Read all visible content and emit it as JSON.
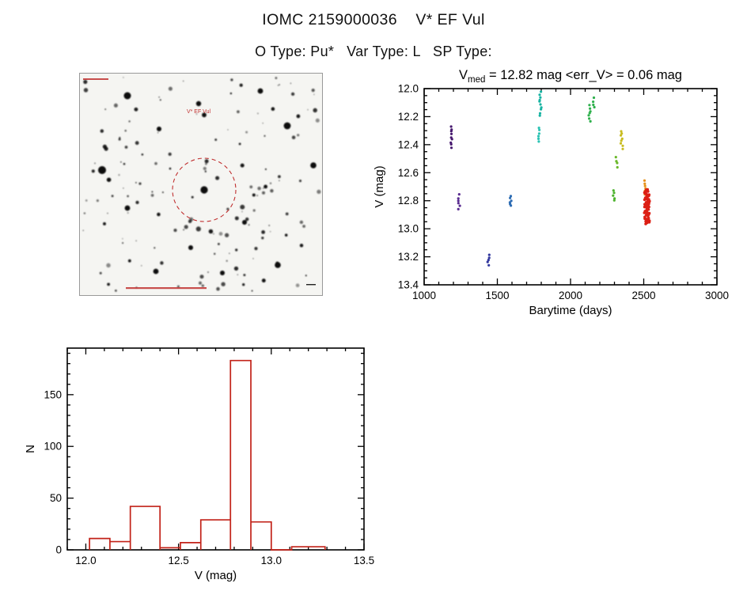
{
  "header": {
    "title": "IOMC 2159000036    V* EF Vul",
    "subtitle": "O Type: Pu*   Var Type: L   SP Type:"
  },
  "finding_chart": {
    "target_label": "V* EF Vul",
    "annotation_color": "#c03030",
    "target_star": [
      157,
      147,
      4.6
    ],
    "stars_big": [
      [
        60,
        28,
        4.5
      ],
      [
        150,
        38,
        3.2
      ],
      [
        28,
        122,
        5.0
      ],
      [
        100,
        70,
        3.0
      ],
      [
        228,
        22,
        3.4
      ],
      [
        262,
        66,
        4.4
      ],
      [
        295,
        116,
        3.8
      ],
      [
        60,
        170,
        3.4
      ],
      [
        140,
        220,
        3.0
      ],
      [
        208,
        188,
        3.0
      ],
      [
        250,
        242,
        3.8
      ],
      [
        96,
        250,
        3.4
      ],
      [
        180,
        252,
        3.0
      ],
      [
        310,
        10,
        2.8
      ]
    ]
  },
  "chart_data": [
    {
      "type": "scatter",
      "name": "lightcurve",
      "title": {
        "v": "V",
        "sub": "med",
        "rest": " = 12.82 mag <err_V> = 0.06 mag"
      },
      "xlabel": "Barytime (days)",
      "ylabel": "V (mag)",
      "xlim": [
        1000,
        3000
      ],
      "ylim": [
        12.0,
        13.4
      ],
      "y_inverted": true,
      "xticks": [
        1000,
        1500,
        2000,
        2500,
        3000
      ],
      "yticks": [
        12.0,
        12.2,
        12.4,
        12.6,
        12.8,
        13.0,
        13.2,
        13.4
      ],
      "x_minor_step": 100,
      "y_minor_step": 0.05,
      "legend": "none",
      "grid": false,
      "clusters": [
        {
          "x": 1185,
          "y0": 12.27,
          "y1": 12.42,
          "color": "#46186e",
          "n": 9
        },
        {
          "x": 1240,
          "y0": 12.76,
          "y1": 12.86,
          "color": "#5a2d91",
          "n": 6
        },
        {
          "x": 1440,
          "y0": 13.19,
          "y1": 13.26,
          "color": "#31379e",
          "n": 5
        },
        {
          "x": 1590,
          "y0": 12.77,
          "y1": 12.84,
          "color": "#2e6db4",
          "n": 6
        },
        {
          "x": 1795,
          "y0": 12.02,
          "y1": 12.19,
          "color": "#17b3a2",
          "n": 10
        },
        {
          "x": 1780,
          "y0": 12.28,
          "y1": 12.38,
          "color": "#2cc3b4",
          "n": 6
        },
        {
          "x": 2130,
          "y0": 12.12,
          "y1": 12.23,
          "color": "#2eb04c",
          "n": 7
        },
        {
          "x": 2160,
          "y0": 12.07,
          "y1": 12.13,
          "color": "#2eb04c",
          "n": 4
        },
        {
          "x": 2295,
          "y0": 12.73,
          "y1": 12.8,
          "color": "#4db32e",
          "n": 5
        },
        {
          "x": 2315,
          "y0": 12.49,
          "y1": 12.56,
          "color": "#6ab82a",
          "n": 4
        },
        {
          "x": 2350,
          "y0": 12.3,
          "y1": 12.43,
          "color": "#c9bc20",
          "n": 8
        },
        {
          "x": 2510,
          "y0": 12.66,
          "y1": 12.75,
          "color": "#e6921b",
          "n": 6
        },
        {
          "x": 2522,
          "y0": 12.72,
          "y1": 12.96,
          "color": "#dc1f14",
          "n": 70,
          "xj": 18,
          "r": 1.8
        }
      ]
    },
    {
      "type": "bar",
      "name": "histogram",
      "xlabel": "V (mag)",
      "ylabel": "N",
      "xlim": [
        11.9,
        13.5
      ],
      "ylim": [
        0,
        195
      ],
      "xticks": [
        12.0,
        12.5,
        13.0,
        13.5
      ],
      "yticks": [
        0,
        50,
        100,
        150
      ],
      "x_minor_step": 0.1,
      "y_minor_step": 10,
      "color": "#c22218",
      "grid": false,
      "bars": [
        {
          "x0": 12.02,
          "x1": 12.13,
          "h": 11
        },
        {
          "x0": 12.13,
          "x1": 12.24,
          "h": 8
        },
        {
          "x0": 12.24,
          "x1": 12.4,
          "h": 42
        },
        {
          "x0": 12.4,
          "x1": 12.51,
          "h": 2
        },
        {
          "x0": 12.51,
          "x1": 12.62,
          "h": 7
        },
        {
          "x0": 12.62,
          "x1": 12.78,
          "h": 29
        },
        {
          "x0": 12.78,
          "x1": 12.89,
          "h": 183
        },
        {
          "x0": 12.89,
          "x1": 13.0,
          "h": 27
        },
        {
          "x0": 13.11,
          "x1": 13.29,
          "h": 3
        }
      ]
    }
  ]
}
